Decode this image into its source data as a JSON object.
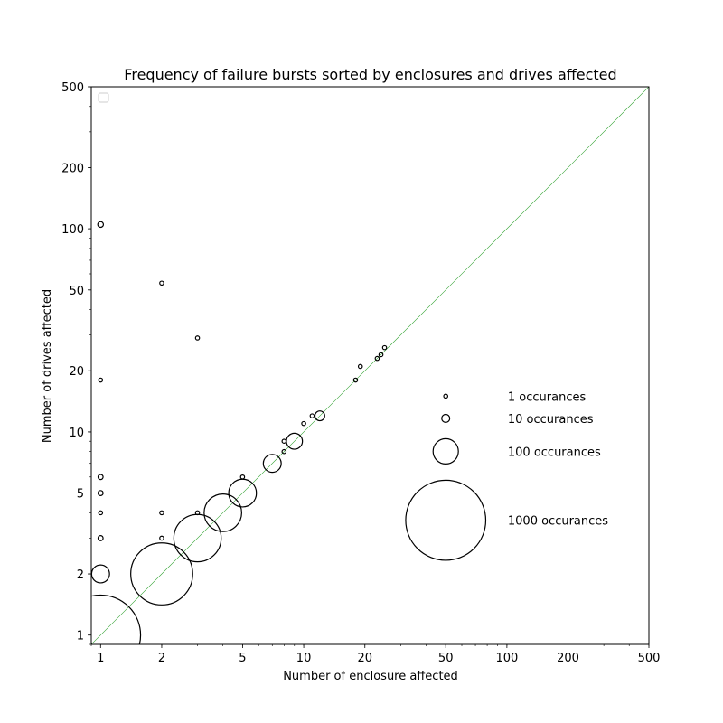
{
  "chart_data": {
    "type": "scatter",
    "title": "Frequency of failure bursts sorted by enclosures and drives affected",
    "xlabel": "Number of enclosure affected",
    "ylabel": "Number of drives affected",
    "xscale": "log",
    "yscale": "log",
    "xlim": [
      0.9,
      500
    ],
    "ylim": [
      0.9,
      500
    ],
    "xticks": [
      1,
      2,
      5,
      10,
      20,
      50,
      100,
      200,
      500
    ],
    "yticks": [
      1,
      2,
      5,
      10,
      20,
      50,
      100,
      200,
      500
    ],
    "diagonal_line": {
      "description": "y = x",
      "color": "#2ca02c"
    },
    "marker_size_meaning": "occurrences",
    "points": [
      {
        "x": 1,
        "y": 1,
        "occurrences": 1000
      },
      {
        "x": 1,
        "y": 2,
        "occurrences": 50
      },
      {
        "x": 1,
        "y": 3,
        "occurrences": 4
      },
      {
        "x": 1,
        "y": 4,
        "occurrences": 1
      },
      {
        "x": 1,
        "y": 5,
        "occurrences": 4
      },
      {
        "x": 1,
        "y": 6,
        "occurrences": 4
      },
      {
        "x": 1,
        "y": 18,
        "occurrences": 1
      },
      {
        "x": 1,
        "y": 105,
        "occurrences": 5
      },
      {
        "x": 2,
        "y": 2,
        "occurrences": 600
      },
      {
        "x": 2,
        "y": 3,
        "occurrences": 1
      },
      {
        "x": 2,
        "y": 4,
        "occurrences": 1
      },
      {
        "x": 2,
        "y": 54,
        "occurrences": 1
      },
      {
        "x": 3,
        "y": 3,
        "occurrences": 350
      },
      {
        "x": 3,
        "y": 4,
        "occurrences": 1
      },
      {
        "x": 3,
        "y": 29,
        "occurrences": 1
      },
      {
        "x": 4,
        "y": 4,
        "occurrences": 220
      },
      {
        "x": 5,
        "y": 5,
        "occurrences": 120
      },
      {
        "x": 5,
        "y": 6,
        "occurrences": 1
      },
      {
        "x": 7,
        "y": 7,
        "occurrences": 50
      },
      {
        "x": 8,
        "y": 8,
        "occurrences": 1
      },
      {
        "x": 8,
        "y": 9,
        "occurrences": 1
      },
      {
        "x": 9,
        "y": 9,
        "occurrences": 40
      },
      {
        "x": 10,
        "y": 11,
        "occurrences": 1
      },
      {
        "x": 11,
        "y": 12,
        "occurrences": 1
      },
      {
        "x": 12,
        "y": 12,
        "occurrences": 15
      },
      {
        "x": 18,
        "y": 18,
        "occurrences": 1
      },
      {
        "x": 19,
        "y": 21,
        "occurrences": 1
      },
      {
        "x": 23,
        "y": 23,
        "occurrences": 1
      },
      {
        "x": 24,
        "y": 24,
        "occurrences": 1
      },
      {
        "x": 25,
        "y": 26,
        "occurrences": 1
      }
    ],
    "size_legend": [
      {
        "occurrences": 1,
        "label": "1 occurances"
      },
      {
        "occurrences": 10,
        "label": "10 occurances"
      },
      {
        "occurrences": 100,
        "label": "100 occurances"
      },
      {
        "occurrences": 1000,
        "label": "1000 occurances"
      }
    ],
    "legend_position": "top-left",
    "grid": false
  }
}
